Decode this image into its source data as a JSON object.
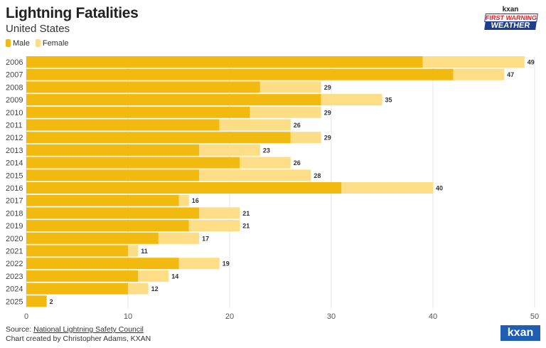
{
  "header": {
    "title": "Lightning Fatalities",
    "subtitle": "United States"
  },
  "logos": {
    "top": "kxan FIRST WARNING WEATHER",
    "bottom": "kxan"
  },
  "footer": {
    "source_prefix": "Source: ",
    "source_link": "National Lightning Safety Council",
    "credit": "Chart created by Christopher Adams, KXAN"
  },
  "colors": {
    "male": "#f2b90f",
    "female": "#fddd85",
    "grid": "#e6e6e6"
  },
  "chart_data": {
    "type": "bar",
    "orientation": "horizontal",
    "stacked": true,
    "title": "Lightning Fatalities",
    "subtitle": "United States",
    "categories": [
      "2006",
      "2007",
      "2008",
      "2009",
      "2010",
      "2011",
      "2012",
      "2013",
      "2014",
      "2015",
      "2016",
      "2017",
      "2018",
      "2019",
      "2020",
      "2021",
      "2022",
      "2023",
      "2024",
      "2025"
    ],
    "series": [
      {
        "name": "Male",
        "values": [
          39,
          42,
          23,
          29,
          22,
          19,
          26,
          17,
          21,
          17,
          31,
          15,
          17,
          16,
          13,
          10,
          15,
          11,
          10,
          2
        ]
      },
      {
        "name": "Female",
        "values": [
          10,
          5,
          6,
          6,
          7,
          7,
          3,
          6,
          5,
          11,
          9,
          1,
          4,
          5,
          4,
          1,
          4,
          3,
          2,
          0
        ]
      }
    ],
    "totals": [
      49,
      47,
      29,
      35,
      29,
      26,
      29,
      23,
      26,
      28,
      40,
      16,
      21,
      21,
      17,
      11,
      19,
      14,
      12,
      2
    ],
    "xlim": [
      0,
      50
    ],
    "xticks": [
      "0",
      "10",
      "20",
      "30",
      "40",
      "50"
    ],
    "grid": true,
    "legend": "top-left"
  }
}
